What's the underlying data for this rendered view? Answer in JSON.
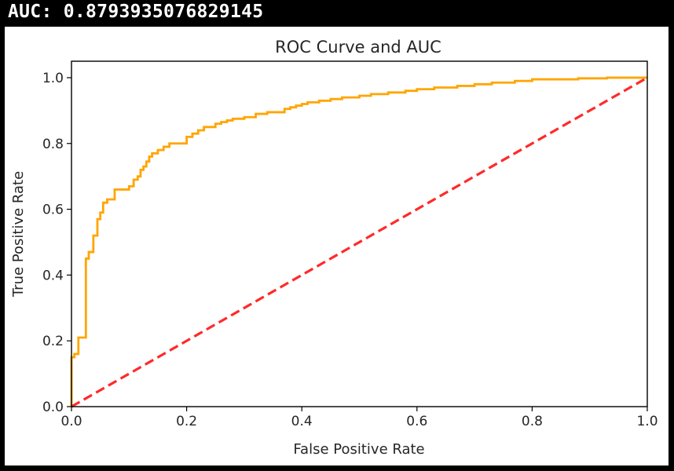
{
  "output": {
    "auc_line": "AUC: 0.8793935076829145"
  },
  "chart_data": {
    "type": "line",
    "title": "ROC Curve and AUC",
    "xlabel": "False Positive Rate",
    "ylabel": "True Positive Rate",
    "xlim": [
      0.0,
      1.0
    ],
    "ylim": [
      0.0,
      1.05
    ],
    "xticks": [
      "0.0",
      "0.2",
      "0.4",
      "0.6",
      "0.8",
      "1.0"
    ],
    "yticks": [
      "0.0",
      "0.2",
      "0.4",
      "0.6",
      "0.8",
      "1.0"
    ],
    "grid": false,
    "series": [
      {
        "style": "solid",
        "color": "#ffa500",
        "x": [
          0.0,
          0.0,
          0.005,
          0.005,
          0.012,
          0.012,
          0.025,
          0.025,
          0.03,
          0.03,
          0.038,
          0.038,
          0.045,
          0.045,
          0.05,
          0.05,
          0.055,
          0.055,
          0.062,
          0.062,
          0.075,
          0.075,
          0.1,
          0.1,
          0.108,
          0.108,
          0.115,
          0.115,
          0.12,
          0.12,
          0.125,
          0.125,
          0.13,
          0.13,
          0.135,
          0.135,
          0.14,
          0.14,
          0.15,
          0.15,
          0.16,
          0.16,
          0.17,
          0.17,
          0.2,
          0.2,
          0.21,
          0.21,
          0.22,
          0.22,
          0.23,
          0.23,
          0.25,
          0.25,
          0.26,
          0.26,
          0.27,
          0.27,
          0.28,
          0.28,
          0.3,
          0.3,
          0.32,
          0.32,
          0.34,
          0.34,
          0.37,
          0.37,
          0.38,
          0.38,
          0.39,
          0.39,
          0.4,
          0.4,
          0.41,
          0.41,
          0.43,
          0.43,
          0.45,
          0.45,
          0.47,
          0.47,
          0.5,
          0.5,
          0.52,
          0.52,
          0.55,
          0.55,
          0.58,
          0.58,
          0.6,
          0.6,
          0.63,
          0.63,
          0.67,
          0.67,
          0.7,
          0.7,
          0.73,
          0.73,
          0.77,
          0.77,
          0.8,
          0.8,
          0.88,
          0.88,
          0.93,
          0.93,
          1.0
        ],
        "y": [
          0.0,
          0.15,
          0.15,
          0.16,
          0.16,
          0.21,
          0.21,
          0.45,
          0.45,
          0.47,
          0.47,
          0.52,
          0.52,
          0.57,
          0.57,
          0.59,
          0.59,
          0.62,
          0.62,
          0.63,
          0.63,
          0.66,
          0.66,
          0.67,
          0.67,
          0.69,
          0.69,
          0.7,
          0.7,
          0.72,
          0.72,
          0.73,
          0.73,
          0.745,
          0.745,
          0.76,
          0.76,
          0.77,
          0.77,
          0.78,
          0.78,
          0.79,
          0.79,
          0.8,
          0.8,
          0.82,
          0.82,
          0.83,
          0.83,
          0.84,
          0.84,
          0.85,
          0.85,
          0.86,
          0.86,
          0.865,
          0.865,
          0.87,
          0.87,
          0.875,
          0.875,
          0.88,
          0.88,
          0.89,
          0.89,
          0.895,
          0.895,
          0.905,
          0.905,
          0.91,
          0.91,
          0.915,
          0.915,
          0.92,
          0.92,
          0.925,
          0.925,
          0.93,
          0.93,
          0.935,
          0.935,
          0.94,
          0.94,
          0.945,
          0.945,
          0.95,
          0.95,
          0.955,
          0.955,
          0.96,
          0.96,
          0.965,
          0.965,
          0.97,
          0.97,
          0.975,
          0.975,
          0.98,
          0.98,
          0.985,
          0.985,
          0.99,
          0.99,
          0.995,
          0.995,
          0.998,
          0.998,
          1.0,
          1.0
        ]
      },
      {
        "style": "dashed",
        "color": "#ff2a2a",
        "x": [
          0.0,
          1.0
        ],
        "y": [
          0.0,
          1.0
        ]
      }
    ]
  }
}
